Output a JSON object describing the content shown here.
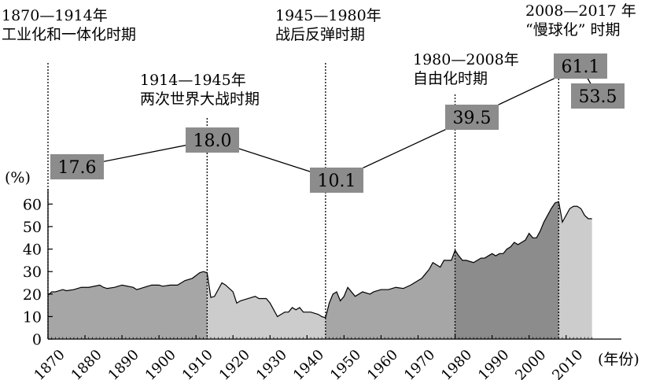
{
  "chart_data": {
    "type": "area",
    "ylabel": "(%)",
    "xlabel": "(年份)",
    "xlim": [
      1870,
      2017
    ],
    "ylim": [
      0,
      60
    ],
    "y_ticks": [
      0,
      10,
      20,
      30,
      40,
      50,
      60
    ],
    "x_ticks": [
      1870,
      1880,
      1890,
      1900,
      1910,
      1920,
      1930,
      1940,
      1950,
      1960,
      1970,
      1980,
      1990,
      2000,
      2010
    ],
    "periods": [
      {
        "years": "1870—1914年",
        "name": "工业化和一体化时期",
        "start": 1870,
        "end": 1913,
        "value": "17.6",
        "fill": "#a6a6a6"
      },
      {
        "years": "1914—1945年",
        "name": "两次世界大战时期",
        "start": 1913,
        "end": 1945,
        "value": "18.0",
        "fill": "#cccccc"
      },
      {
        "years": "1945—1980年",
        "name": "战后反弹时期",
        "start": 1945,
        "end": 1980,
        "value": "10.1",
        "fill": "#a6a6a6"
      },
      {
        "years": "1980—2008年",
        "name": "自由化时期",
        "start": 1980,
        "end": 2008,
        "value": "39.5",
        "fill": "#8c8c8c"
      },
      {
        "years": "2008—2017 年",
        "name": "“慢球化” 时期",
        "start": 2008,
        "end": 2017,
        "value": "61.1",
        "fill": "#cccccc"
      }
    ],
    "extra_labels": [
      {
        "value": "53.5"
      }
    ],
    "series": [
      {
        "x": [
          1870,
          1871,
          1872,
          1874,
          1875,
          1877,
          1879,
          1881,
          1884,
          1885,
          1886,
          1888,
          1890,
          1893,
          1894,
          1895,
          1896,
          1898,
          1899,
          1900,
          1901,
          1903,
          1905,
          1907,
          1909,
          1911,
          1912,
          1913,
          1914,
          1915,
          1917,
          1918,
          1920,
          1921,
          1922,
          1924,
          1926,
          1927,
          1929,
          1930,
          1931,
          1932,
          1933,
          1934,
          1935,
          1936,
          1937,
          1938,
          1939,
          1940,
          1941,
          1943,
          1944,
          1945,
          1946,
          1947,
          1948,
          1949,
          1950,
          1951,
          1952,
          1953,
          1955,
          1957,
          1958,
          1960,
          1962,
          1964,
          1966,
          1968,
          1970,
          1971,
          1972,
          1973,
          1974,
          1975,
          1976,
          1977,
          1978,
          1979,
          1980,
          1981,
          1982,
          1983,
          1985,
          1986,
          1987,
          1988,
          1989,
          1990,
          1991,
          1992,
          1993,
          1994,
          1995,
          1996,
          1997,
          1998,
          1999,
          2000,
          2001,
          2002,
          2003,
          2004,
          2005,
          2006,
          2007,
          2008,
          2009,
          2010,
          2011,
          2012,
          2013,
          2014,
          2015,
          2016,
          2017
        ],
        "values": [
          19.5,
          21,
          21,
          22,
          21.5,
          22,
          23,
          23,
          24,
          23,
          22.5,
          23,
          24,
          23,
          22,
          22.5,
          23,
          24,
          24,
          24,
          23.5,
          24,
          24,
          26,
          27,
          29.5,
          30,
          29.5,
          18.5,
          19,
          25,
          24,
          21,
          16,
          17,
          18,
          19,
          18,
          18,
          16,
          13,
          10,
          11,
          12,
          12,
          14,
          13,
          14,
          12,
          12,
          12,
          11,
          10,
          9.5,
          16,
          20,
          21,
          17,
          19,
          23,
          21,
          19,
          21,
          20,
          21,
          22,
          22,
          23,
          22.5,
          24,
          26,
          27,
          29,
          31,
          34,
          33,
          32,
          35,
          35,
          35,
          39.5,
          37,
          35,
          35,
          34,
          35,
          36,
          36,
          37,
          38,
          37,
          38,
          38,
          40,
          41,
          43,
          42,
          43,
          44,
          47,
          45,
          45,
          48,
          52,
          55,
          58,
          60.5,
          61.1,
          52,
          55,
          58,
          59,
          59,
          58,
          55,
          53.5,
          53.5
        ]
      }
    ]
  }
}
